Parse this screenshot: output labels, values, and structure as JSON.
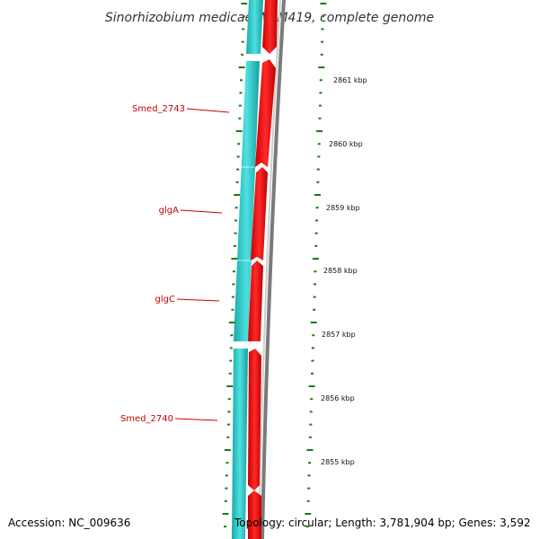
{
  "title": "Sinorhizobium medicae WSM419, complete genome",
  "footer": {
    "accession": "Accession: NC_009636",
    "topology": "Topology: circular; Length: 3,781,904 bp; Genes: 3,592"
  },
  "scale_labels": [
    "2861 kbp",
    "2860 kbp",
    "2859 kbp",
    "2858 kbp",
    "2857 kbp",
    "2856 kbp",
    "2855 kbp"
  ],
  "gene_labels": [
    "Smed_2743",
    "glgA",
    "glgC",
    "Smed_2740"
  ],
  "colors": {
    "cds_reverse": "#2cc6c6",
    "cds_forward": "#ee0000",
    "backbone": "#888888",
    "ticks": "#1a7a1a",
    "label": "#cc0000"
  }
}
